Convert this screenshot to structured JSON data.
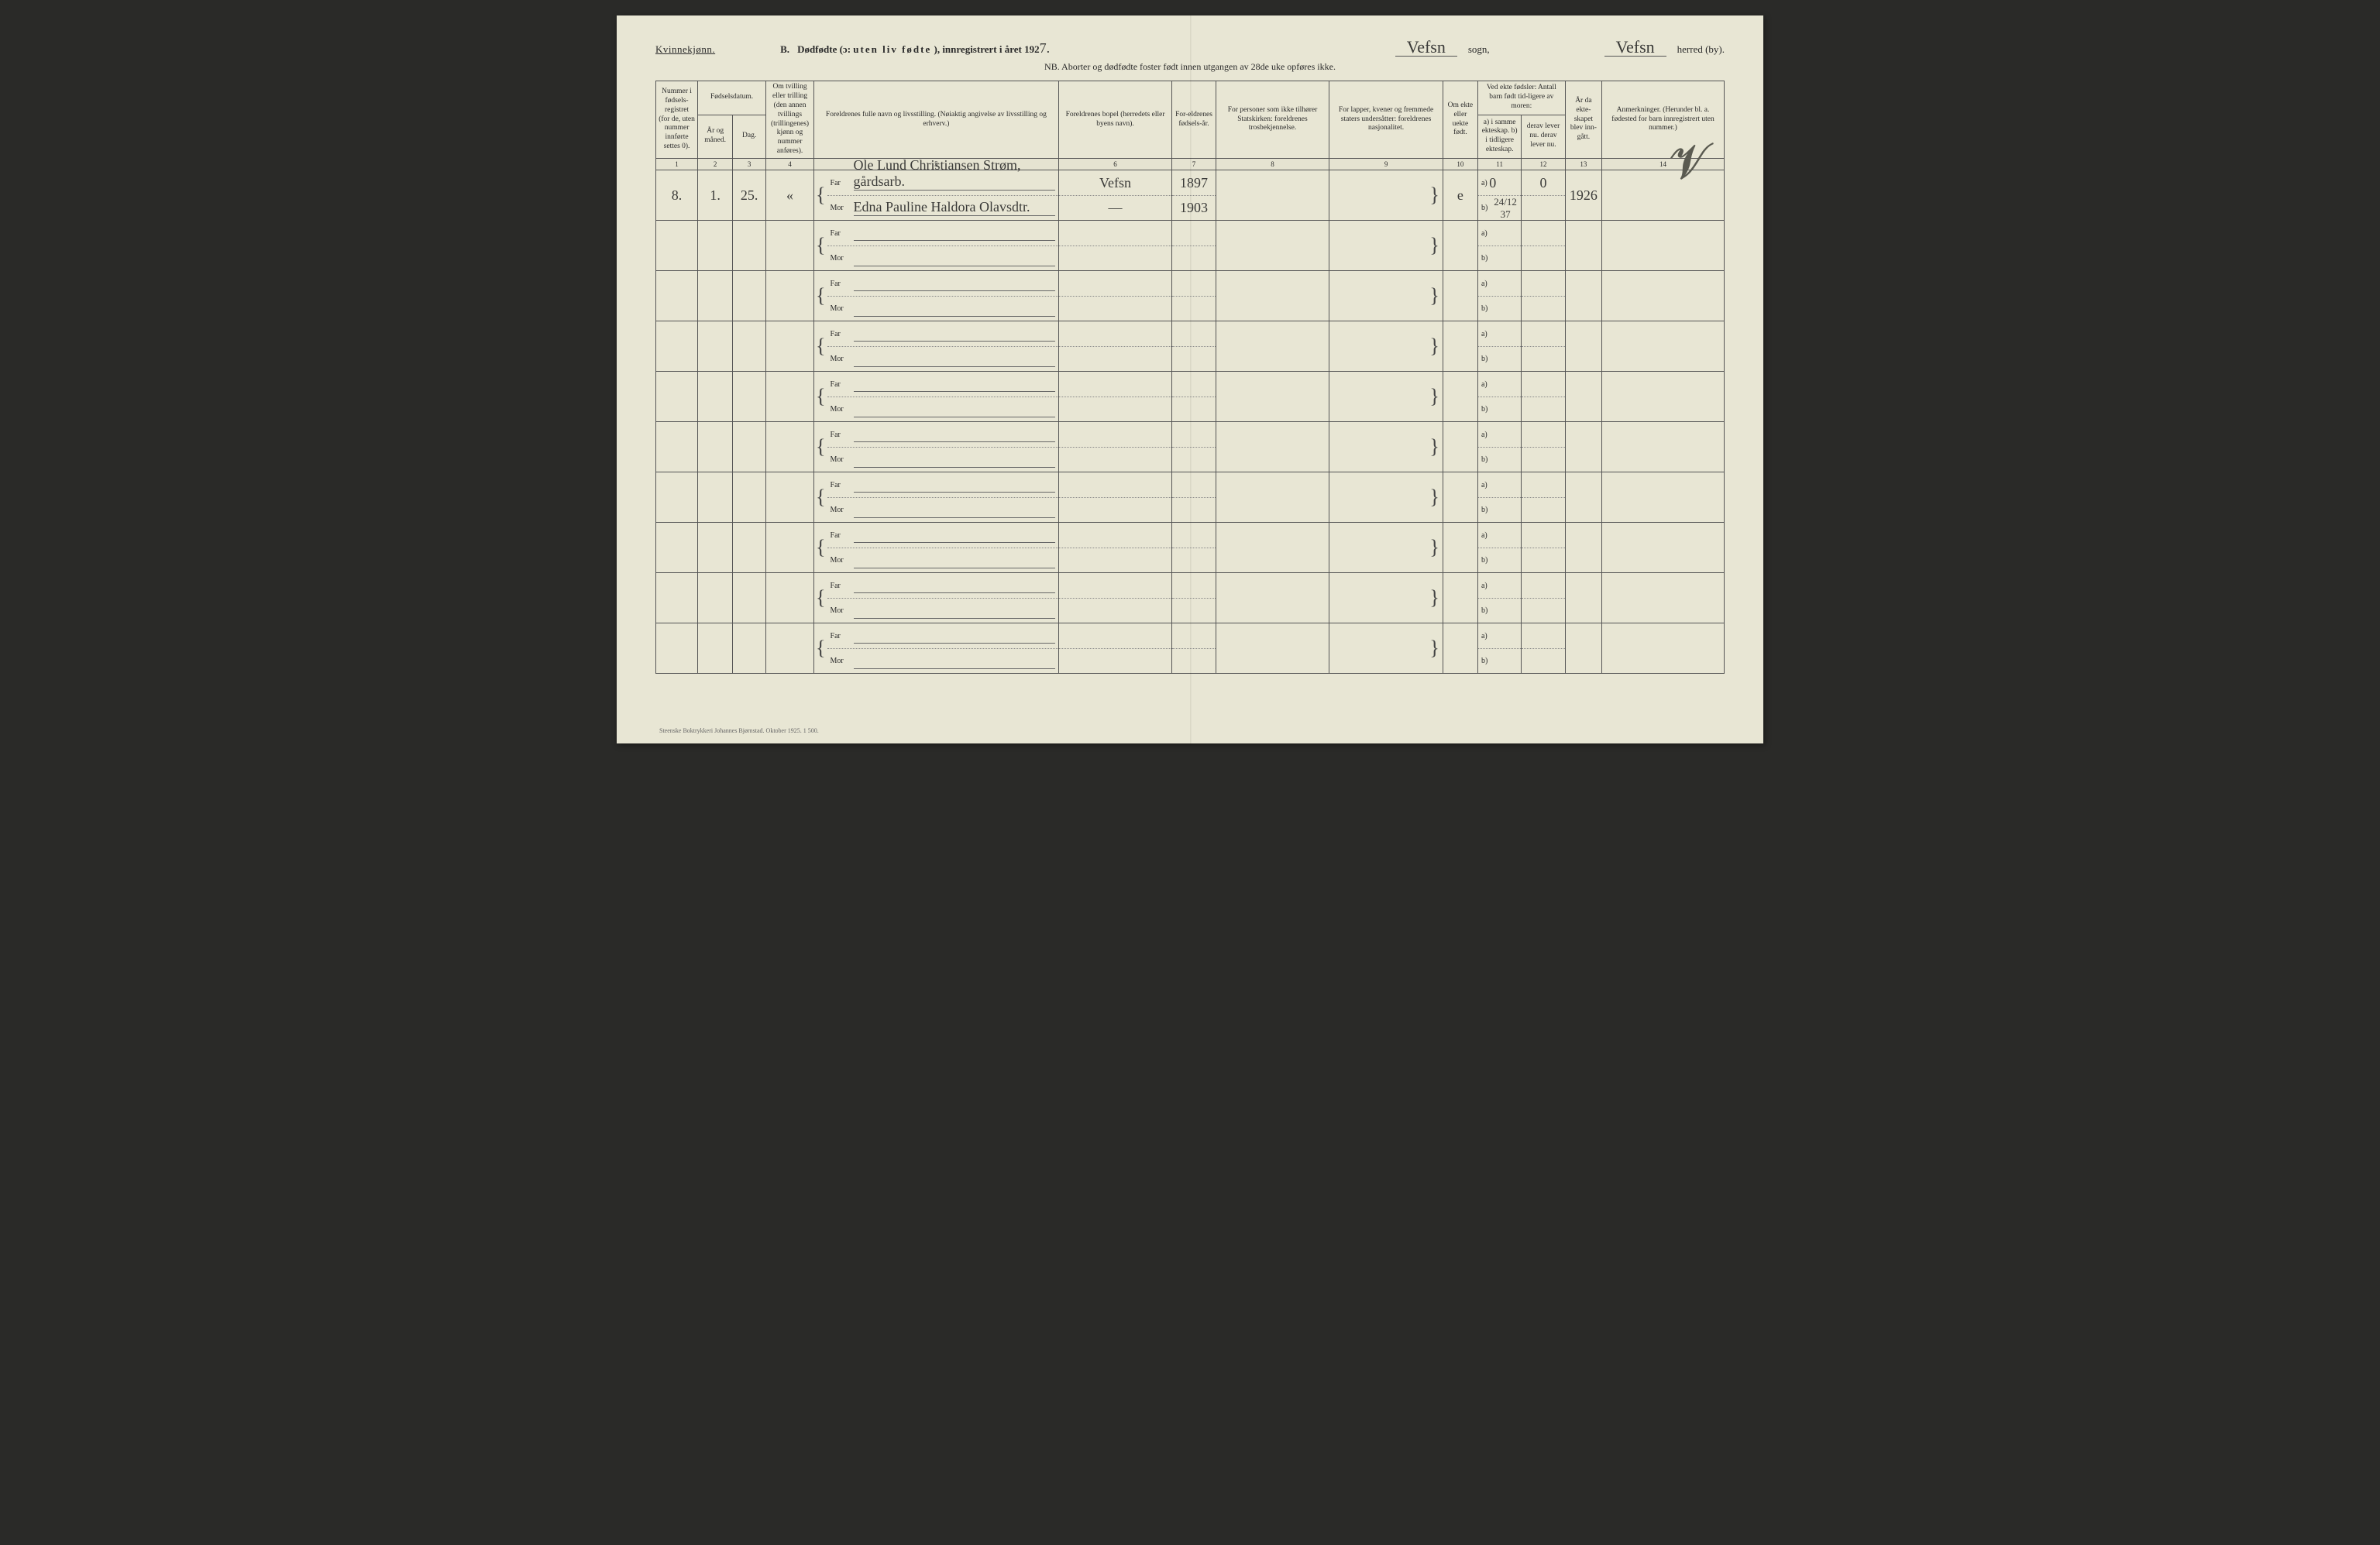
{
  "page": {
    "background": "#e8e6d4",
    "ink": "#2a2a2a",
    "border": "#555555"
  },
  "header": {
    "gender": "Kvinnekjønn.",
    "section_letter": "B.",
    "title_prefix": "Dødfødte (ɔ:",
    "title_spaced": "uten liv fødte",
    "title_suffix": "), innregistrert i året 192",
    "year_digit": "7.",
    "sogn_value": "Vefsn",
    "sogn_label": "sogn,",
    "herred_value": "Vefsn",
    "herred_label": "herred (by).",
    "nb": "NB.  Aborter og dødfødte foster født innen utgangen av 28de uke opføres ikke."
  },
  "columns": {
    "c1": "Nummer i fødsels-registret (for de, uten nummer innførte settes 0).",
    "c2_group": "Fødselsdatum.",
    "c2": "År og måned.",
    "c3": "Dag.",
    "c4": "Om tvilling eller trilling (den annen tvillings (trillingenes) kjønn og nummer anføres).",
    "c5": "Foreldrenes fulle navn og livsstilling.\n(Nøiaktig angivelse av livsstilling og erhverv.)",
    "c6": "Foreldrenes bopel\n(herredets eller byens navn).",
    "c7": "For-eldrenes fødsels-år.",
    "c8": "For personer som ikke tilhører Statskirken:\nforeldrenes trosbekjennelse.",
    "c9": "For lapper, kvener og fremmede staters undersåtter:\nforeldrenes nasjonalitet.",
    "c10": "Om ekte eller uekte født.",
    "c11_12_group": "Ved ekte fødsler:\nAntall barn født tid-ligere av moren:",
    "c11": "a) i samme ekteskap.\nb) i tidligere ekteskap.",
    "c12": "derav lever nu.\nderav lever nu.",
    "c13": "År da ekte-skapet blev inn-gått.",
    "c14": "Anmerkninger.\n(Herunder bl. a. fødested for barn innregistrert uten nummer.)",
    "far": "Far",
    "mor": "Mor",
    "a": "a)",
    "b": "b)"
  },
  "colnums": [
    "1",
    "2",
    "3",
    "4",
    "5",
    "6",
    "7",
    "8",
    "9",
    "10",
    "11",
    "12",
    "13",
    "14"
  ],
  "rows": [
    {
      "num": "8.",
      "month": "1.",
      "day": "25.",
      "twin": "«",
      "far_name": "Ole Lund Christiansen Strøm, gårdsarb.",
      "mor_name": "Edna Pauline Haldora Olavsdtr.",
      "bopel_far": "Vefsn",
      "bopel_mor": "—",
      "year_far": "1897",
      "year_mor": "1903",
      "ekte": "e",
      "a_same": "0",
      "a_lever": "0",
      "b_same": "24/12 37",
      "b_lever": "",
      "year_married": "1926",
      "remark": ""
    },
    {},
    {},
    {},
    {},
    {},
    {},
    {},
    {},
    {}
  ],
  "footer": "Steenske Boktrykkeri Johannes Bjørnstad.  Oktober 1925.   1 500."
}
